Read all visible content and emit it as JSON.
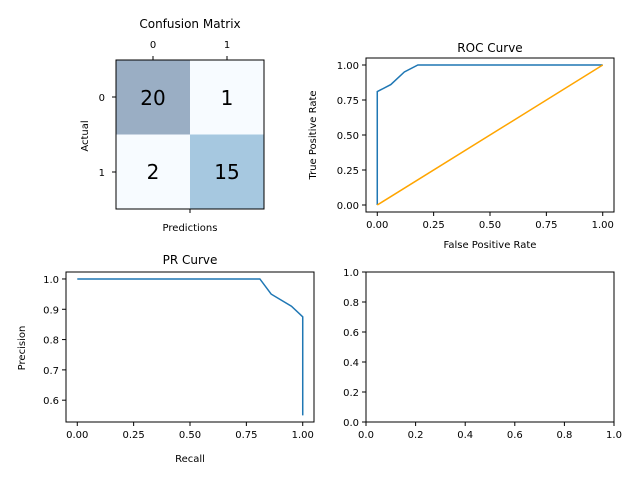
{
  "colors": {
    "line": "#1f77b4",
    "diagonal": "#ffa500",
    "cm_high": "#9aaec4",
    "cm_mid": "#a6c8e0",
    "cm_low": "#f7fbff"
  },
  "chart_data": [
    {
      "type": "heatmap",
      "title": "Confusion Matrix",
      "xlabel": "Predictions",
      "ylabel": "Actual",
      "x_categories": [
        "0",
        "1"
      ],
      "y_categories": [
        "0",
        "1"
      ],
      "x_ticks_position": "top",
      "values": [
        [
          20,
          1
        ],
        [
          2,
          15
        ]
      ],
      "cell_labels": [
        [
          "20",
          "1"
        ],
        [
          "2",
          "15"
        ]
      ]
    },
    {
      "type": "line",
      "title": "ROC Curve",
      "xlabel": "False Positive Rate",
      "ylabel": "True Positive Rate",
      "xlim": [
        -0.05,
        1.05
      ],
      "ylim": [
        -0.05,
        1.05
      ],
      "xticks": [
        "0.00",
        "0.25",
        "0.50",
        "0.75",
        "1.00"
      ],
      "yticks": [
        "0.00",
        "0.25",
        "0.50",
        "0.75",
        "1.00"
      ],
      "series": [
        {
          "x": [
            0,
            0,
            0.06,
            0.12,
            0.18,
            0.24,
            1.0
          ],
          "y": [
            0,
            0.81,
            0.86,
            0.95,
            1.0,
            1.0,
            1.0
          ]
        },
        {
          "x": [
            0,
            1
          ],
          "y": [
            0,
            1
          ]
        }
      ]
    },
    {
      "type": "line",
      "title": "PR Curve",
      "xlabel": "Recall",
      "ylabel": "Precision",
      "xlim": [
        -0.05,
        1.05
      ],
      "ylim": [
        0.528,
        1.023
      ],
      "xticks": [
        "0.00",
        "0.25",
        "0.50",
        "0.75",
        "1.00"
      ],
      "yticks": [
        "0.6",
        "0.7",
        "0.8",
        "0.9",
        "1.0"
      ],
      "series": [
        {
          "x": [
            0,
            0.81,
            0.86,
            0.95,
            1.0,
            1.0
          ],
          "y": [
            1.0,
            1.0,
            0.95,
            0.91,
            0.875,
            0.55
          ]
        }
      ]
    },
    {
      "type": "line",
      "title": "",
      "xlim": [
        0,
        1
      ],
      "ylim": [
        0,
        1
      ],
      "xticks": [
        "0.0",
        "0.2",
        "0.4",
        "0.6",
        "0.8",
        "1.0"
      ],
      "yticks": [
        "0.0",
        "0.2",
        "0.4",
        "0.6",
        "0.8",
        "1.0"
      ],
      "series": []
    }
  ]
}
